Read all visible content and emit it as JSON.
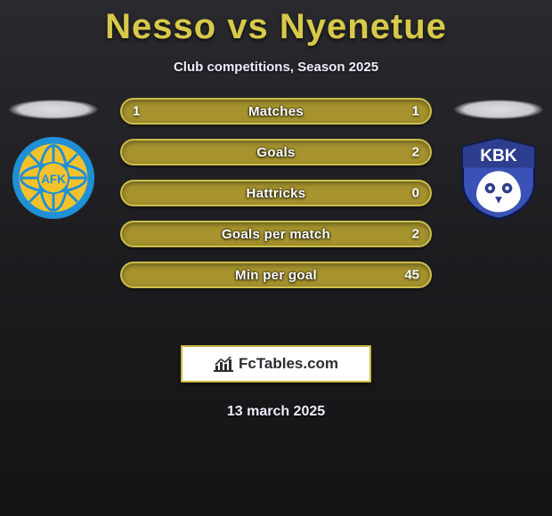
{
  "title": {
    "left": "Nesso",
    "vs": "vs",
    "right": "Nyenetue"
  },
  "subtitle": "Club competitions, Season 2025",
  "colors": {
    "accent": "#d7c94a",
    "bar_fill": "#a6932e",
    "bar_border": "#cdbf4b",
    "text": "#ffffff"
  },
  "bars": [
    {
      "label": "Matches",
      "left": "1",
      "right": "1"
    },
    {
      "label": "Goals",
      "left": "",
      "right": "2"
    },
    {
      "label": "Hattricks",
      "left": "",
      "right": "0"
    },
    {
      "label": "Goals per match",
      "left": "",
      "right": "2"
    },
    {
      "label": "Min per goal",
      "left": "",
      "right": "45"
    }
  ],
  "watermark": {
    "text": "FcTables.com",
    "icon": "chart-icon"
  },
  "date": "13 march 2025",
  "logos": {
    "left": {
      "name": "aalesund-logo",
      "ring": "#1f8fd6",
      "inner": "#f3c22b",
      "text": "AFK",
      "text_color": "#1f8fd6"
    },
    "right": {
      "name": "kbk-logo",
      "top": "#2d3e8f",
      "text": "KBK",
      "owl": "#ffffff"
    }
  }
}
